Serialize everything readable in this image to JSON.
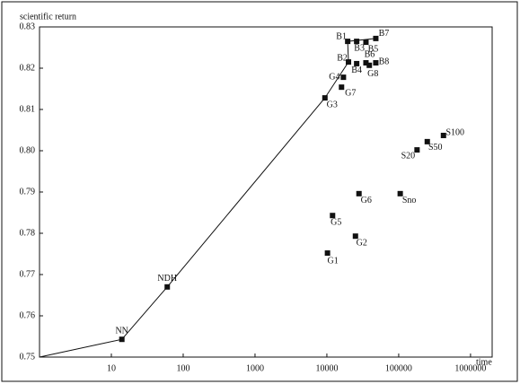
{
  "chart_data": {
    "type": "scatter",
    "x_label": "time",
    "y_label": "scientific return",
    "log_x": true,
    "xlim": [
      1,
      2000000
    ],
    "ylim": [
      0.75,
      0.83
    ],
    "xticks": [
      10,
      100,
      1000,
      10000,
      100000,
      1000000
    ],
    "yticks": [
      0.75,
      0.76,
      0.77,
      0.78,
      0.79,
      {
        "value": 0.8,
        "label": "0.80"
      },
      0.81,
      0.82,
      0.83
    ],
    "color": "#111111",
    "frontier": {
      "x": [
        1,
        14,
        60,
        9400,
        20000,
        19500,
        48000
      ],
      "y": [
        0.75,
        0.7543,
        0.767,
        0.8128,
        0.8215,
        0.8265,
        0.8272
      ]
    },
    "points": {
      "labels": [
        "NN",
        "NDH",
        "G1",
        "G2",
        "G5",
        "G6",
        "Sno",
        "S20",
        "S50",
        "S100",
        "G3",
        "G7",
        "G4",
        "B2",
        "B4",
        "G8",
        "B6",
        "B8",
        "B1",
        "B3",
        "B5",
        "B7"
      ],
      "x": [
        14,
        60,
        10200,
        25000,
        12000,
        28000,
        105000,
        180000,
        250000,
        420000,
        9400,
        16000,
        17000,
        20000,
        26000,
        39000,
        35000,
        48000,
        19500,
        26000,
        35000,
        48000
      ],
      "y": [
        0.7543,
        0.767,
        0.7752,
        0.7793,
        0.7843,
        0.7896,
        0.7896,
        0.8002,
        0.8022,
        0.8037,
        0.8128,
        0.8154,
        0.8178,
        0.8215,
        0.8211,
        0.8207,
        0.8213,
        0.8213,
        0.8265,
        0.8265,
        0.8263,
        0.8272
      ]
    }
  }
}
